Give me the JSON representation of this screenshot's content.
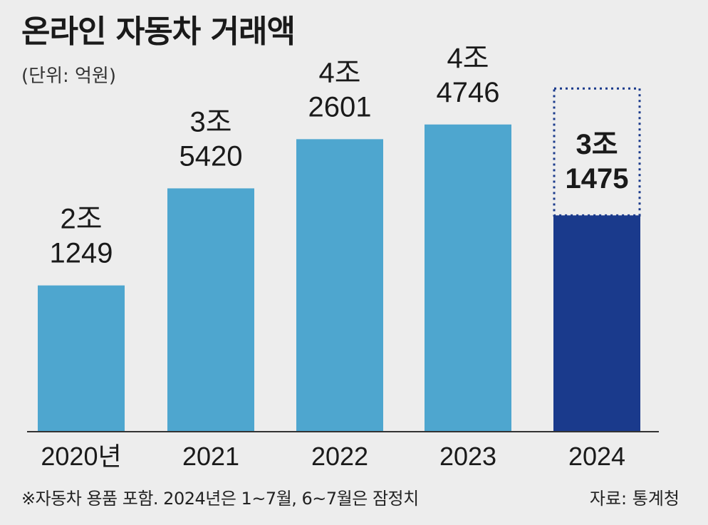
{
  "title": "온라인 자동차 거래액",
  "unit_note": "(단위: 억원)",
  "footnote": "※자동차 용품 포함. 2024년은 1~7월, 6~7월은 잠정치",
  "source": "자료: 통계청",
  "colors": {
    "bar": "#4ea6cf",
    "bar_highlight": "#1a3a8c",
    "dotted_outline": "#1a3a8c",
    "axis": "#333333"
  },
  "chart_data": {
    "type": "bar",
    "categories": [
      "2020년",
      "2021",
      "2022",
      "2023",
      "2024"
    ],
    "values": [
      21249,
      35420,
      42601,
      44746,
      31475
    ],
    "data_labels": [
      [
        "2조",
        "1249"
      ],
      [
        "3조",
        "5420"
      ],
      [
        "4조",
        "2601"
      ],
      [
        "4조",
        "4746"
      ],
      [
        "3조",
        "1475"
      ]
    ],
    "highlight_index": 4,
    "projection_value_2024": 50000,
    "ylim": [
      0,
      52000
    ],
    "grid": false
  }
}
